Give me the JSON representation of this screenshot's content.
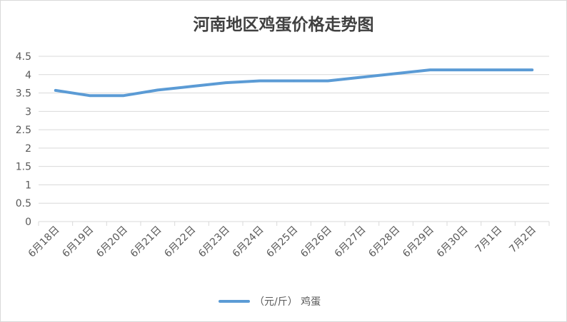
{
  "chart_data": {
    "type": "line",
    "title": "河南地区鸡蛋价格走势图",
    "categories": [
      "6月18日",
      "6月19日",
      "6月20日",
      "6月21日",
      "6月22日",
      "6月23日",
      "6月24日",
      "6月25日",
      "6月26日",
      "6月27日",
      "6月28日",
      "6月29日",
      "6月30日",
      "7月1日",
      "7月2日"
    ],
    "series": [
      {
        "name": "（元/斤） 鸡蛋",
        "values": [
          3.57,
          3.43,
          3.43,
          3.58,
          3.68,
          3.78,
          3.83,
          3.83,
          3.83,
          3.93,
          4.03,
          4.13,
          4.13,
          4.13,
          4.13
        ],
        "color": "#5b9bd5"
      }
    ],
    "yticks": [
      "0",
      "0.5",
      "1",
      "1.5",
      "2",
      "2.5",
      "3",
      "3.5",
      "4",
      "4.5"
    ],
    "ylim": [
      0,
      4.5
    ],
    "grid": true,
    "legend_position": "bottom",
    "xlabel": "",
    "ylabel": ""
  }
}
